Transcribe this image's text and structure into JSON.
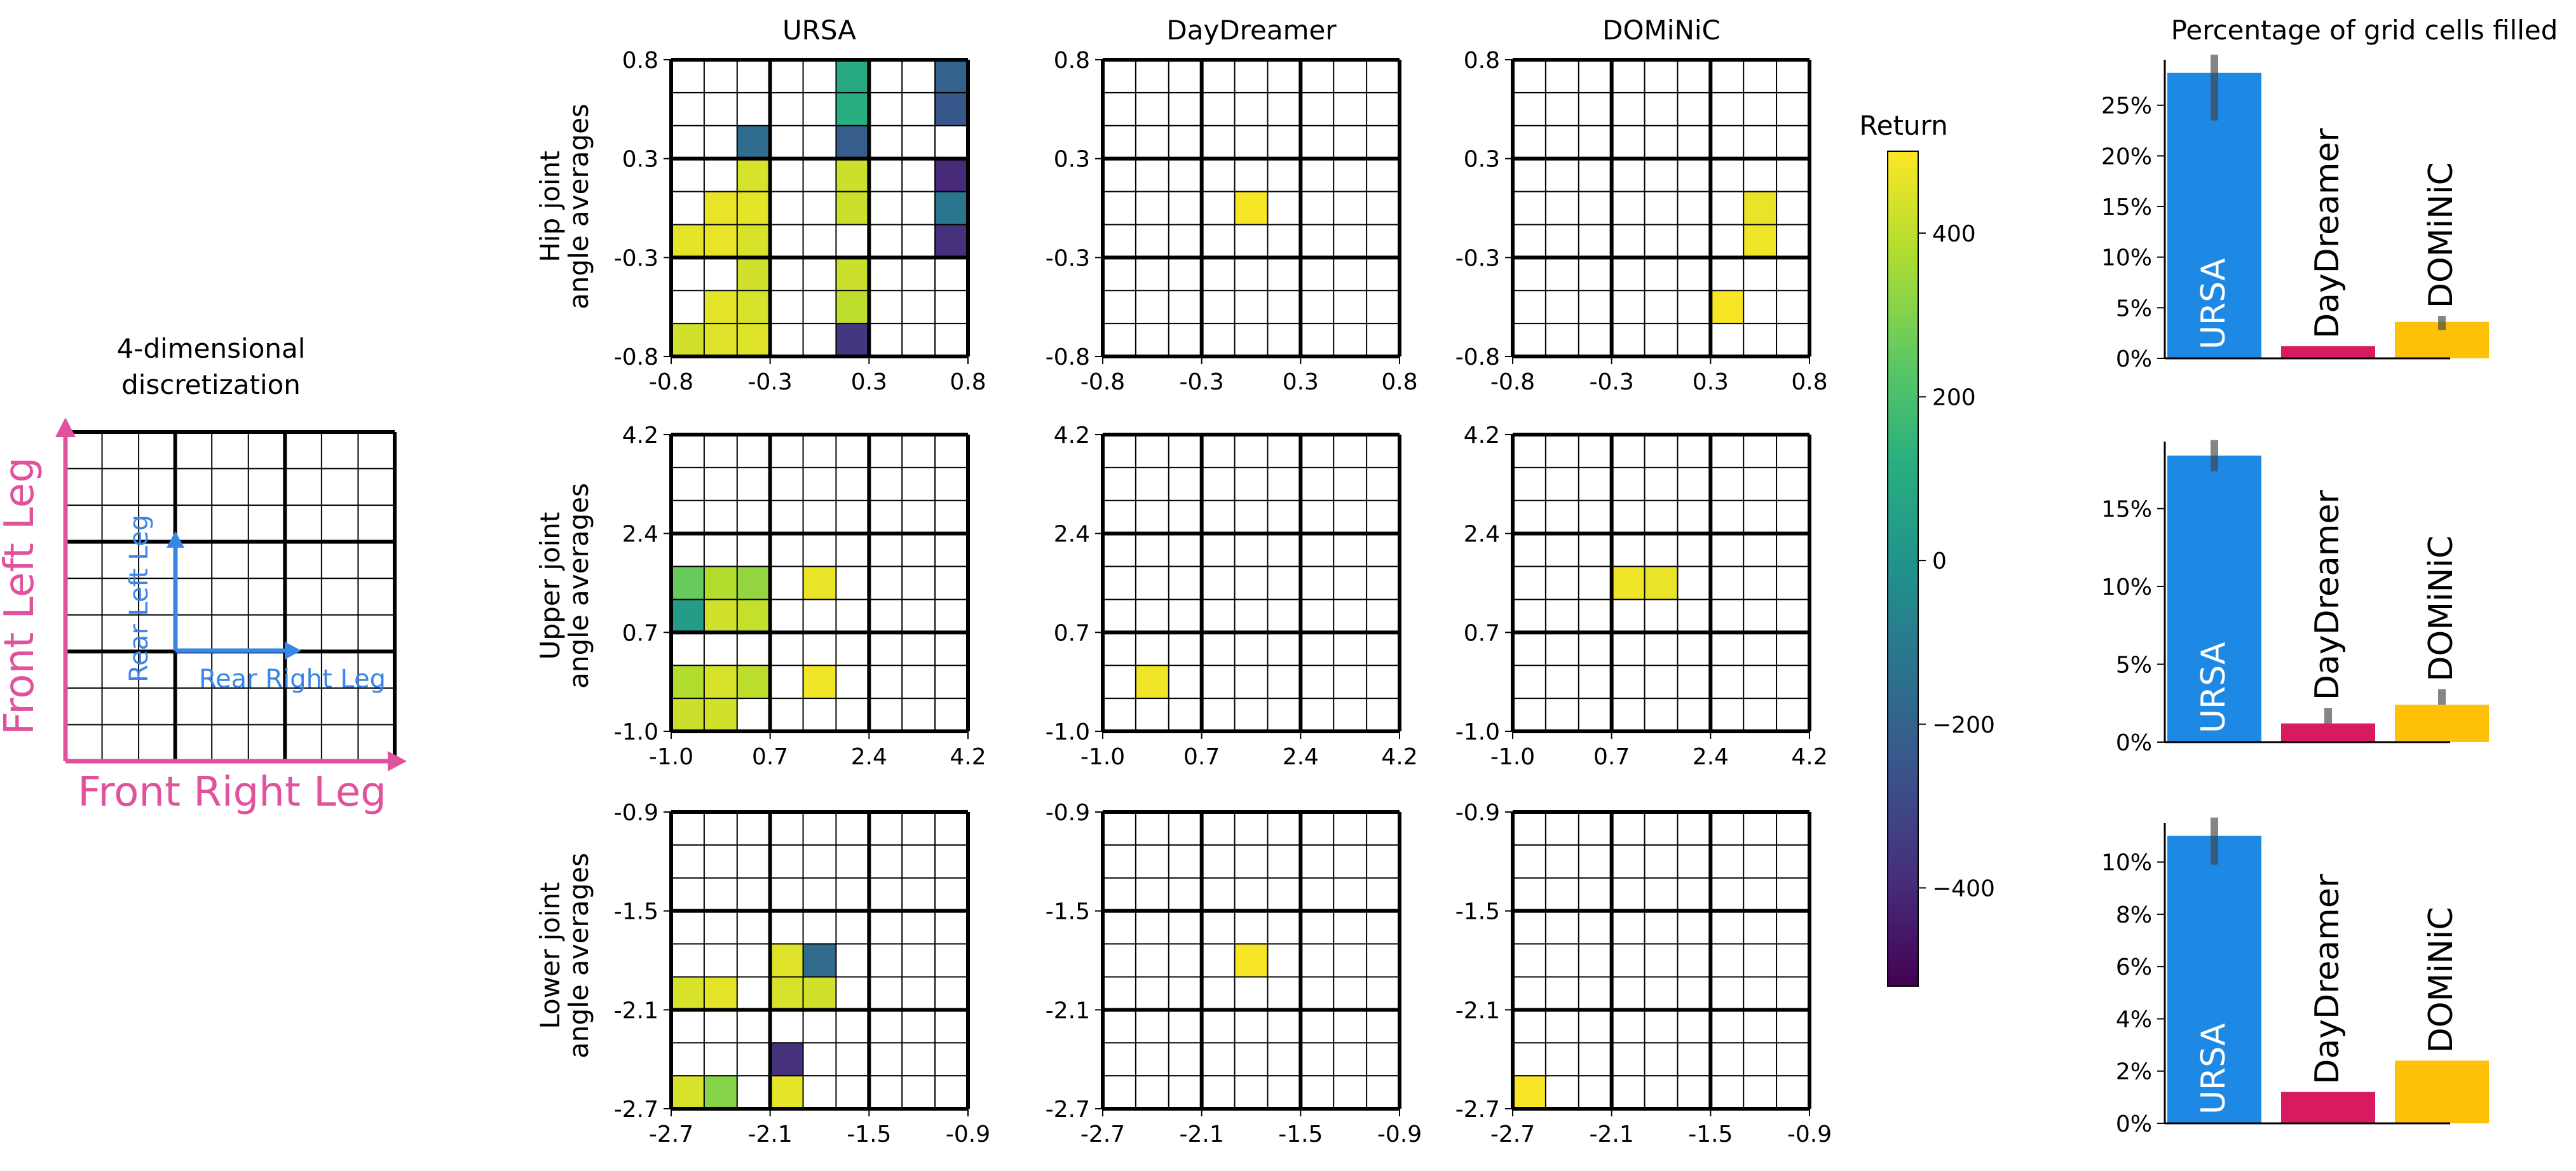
{
  "legend_diagram": {
    "title_lines": [
      "4-dimensional",
      "discretization"
    ],
    "axis_x_label": "Front Right Leg",
    "axis_y_label": "Front Left Leg",
    "inner_x_label": "Rear Right Leg",
    "inner_y_label": "Rear Left Leg",
    "outer_color": "#E0529C",
    "inner_color": "#3A86E8"
  },
  "column_titles": [
    "URSA",
    "DayDreamer",
    "DOMiNiC"
  ],
  "row_labels": [
    [
      "Hip joint",
      "angle averages"
    ],
    [
      "Upper joint",
      "angle averages"
    ],
    [
      "Lower joint",
      "angle averages"
    ]
  ],
  "heatmap_ticks": [
    [
      "-0.8",
      "-0.3",
      "0.3",
      "0.8"
    ],
    [
      "-1.0",
      "0.7",
      "2.4",
      "4.2"
    ],
    [
      "-2.7",
      "-2.1",
      "-1.5",
      "-0.9"
    ]
  ],
  "colorbar": {
    "title": "Return",
    "ticks": [
      "400",
      "200",
      "0",
      "−200",
      "−400"
    ],
    "tick_values": [
      400,
      200,
      0,
      -200,
      -400
    ],
    "range": [
      -520,
      500
    ],
    "colormap": "viridis"
  },
  "bar_panel_title": "Percentage of grid cells filled",
  "chart_data": [
    {
      "type": "heatmap",
      "title": "URSA",
      "ylabel": "Hip joint angle averages",
      "x_ticks": [
        "-0.8",
        "-0.3",
        "0.3",
        "0.8"
      ],
      "y_ticks": [
        "-0.8",
        "-0.3",
        "0.3",
        "0.8"
      ],
      "grid": 9,
      "cells": [
        {
          "col": 5,
          "row": 0,
          "value": 90
        },
        {
          "col": 8,
          "row": 0,
          "value": -200
        },
        {
          "col": 5,
          "row": 1,
          "value": 120
        },
        {
          "col": 8,
          "row": 1,
          "value": -240
        },
        {
          "col": 2,
          "row": 2,
          "value": -160
        },
        {
          "col": 5,
          "row": 2,
          "value": -220
        },
        {
          "col": 2,
          "row": 3,
          "value": 440
        },
        {
          "col": 5,
          "row": 3,
          "value": 420
        },
        {
          "col": 8,
          "row": 3,
          "value": -400
        },
        {
          "col": 1,
          "row": 4,
          "value": 470
        },
        {
          "col": 2,
          "row": 4,
          "value": 460
        },
        {
          "col": 5,
          "row": 4,
          "value": 420
        },
        {
          "col": 8,
          "row": 4,
          "value": -120
        },
        {
          "col": 0,
          "row": 5,
          "value": 460
        },
        {
          "col": 1,
          "row": 5,
          "value": 470
        },
        {
          "col": 2,
          "row": 5,
          "value": 440
        },
        {
          "col": 8,
          "row": 5,
          "value": -380
        },
        {
          "col": 2,
          "row": 6,
          "value": 430
        },
        {
          "col": 5,
          "row": 6,
          "value": 420
        },
        {
          "col": 1,
          "row": 7,
          "value": 460
        },
        {
          "col": 2,
          "row": 7,
          "value": 440
        },
        {
          "col": 5,
          "row": 7,
          "value": 400
        },
        {
          "col": 0,
          "row": 8,
          "value": 430
        },
        {
          "col": 1,
          "row": 8,
          "value": 450
        },
        {
          "col": 2,
          "row": 8,
          "value": 450
        },
        {
          "col": 5,
          "row": 8,
          "value": -360
        }
      ]
    },
    {
      "type": "heatmap",
      "title": "DayDreamer",
      "ylabel": "Hip joint angle averages",
      "x_ticks": [
        "-0.8",
        "-0.3",
        "0.3",
        "0.8"
      ],
      "y_ticks": [
        "-0.8",
        "-0.3",
        "0.3",
        "0.8"
      ],
      "grid": 9,
      "cells": [
        {
          "col": 4,
          "row": 4,
          "value": 490
        }
      ]
    },
    {
      "type": "heatmap",
      "title": "DOMiNiC",
      "ylabel": "Hip joint angle averages",
      "x_ticks": [
        "-0.8",
        "-0.3",
        "0.3",
        "0.8"
      ],
      "y_ticks": [
        "-0.8",
        "-0.3",
        "0.3",
        "0.8"
      ],
      "grid": 9,
      "cells": [
        {
          "col": 7,
          "row": 4,
          "value": 470
        },
        {
          "col": 7,
          "row": 5,
          "value": 480
        },
        {
          "col": 6,
          "row": 7,
          "value": 490
        }
      ]
    },
    {
      "type": "heatmap",
      "title": "URSA",
      "ylabel": "Upper joint angle averages",
      "x_ticks": [
        "-1.0",
        "0.7",
        "2.4",
        "4.2"
      ],
      "y_ticks": [
        "-1.0",
        "0.7",
        "2.4",
        "4.2"
      ],
      "grid": 9,
      "cells": [
        {
          "col": 0,
          "row": 4,
          "value": 260
        },
        {
          "col": 1,
          "row": 4,
          "value": 380
        },
        {
          "col": 2,
          "row": 4,
          "value": 330
        },
        {
          "col": 4,
          "row": 4,
          "value": 470
        },
        {
          "col": 0,
          "row": 5,
          "value": 40
        },
        {
          "col": 1,
          "row": 5,
          "value": 430
        },
        {
          "col": 2,
          "row": 5,
          "value": 410
        },
        {
          "col": 0,
          "row": 7,
          "value": 380
        },
        {
          "col": 1,
          "row": 7,
          "value": 440
        },
        {
          "col": 2,
          "row": 7,
          "value": 400
        },
        {
          "col": 4,
          "row": 7,
          "value": 480
        },
        {
          "col": 0,
          "row": 8,
          "value": 420
        },
        {
          "col": 1,
          "row": 8,
          "value": 430
        }
      ]
    },
    {
      "type": "heatmap",
      "title": "DayDreamer",
      "ylabel": "Upper joint angle averages",
      "x_ticks": [
        "-1.0",
        "0.7",
        "2.4",
        "4.2"
      ],
      "y_ticks": [
        "-1.0",
        "0.7",
        "2.4",
        "4.2"
      ],
      "grid": 9,
      "cells": [
        {
          "col": 1,
          "row": 7,
          "value": 480
        }
      ]
    },
    {
      "type": "heatmap",
      "title": "DOMiNiC",
      "ylabel": "Upper joint angle averages",
      "x_ticks": [
        "-1.0",
        "0.7",
        "2.4",
        "4.2"
      ],
      "y_ticks": [
        "-1.0",
        "0.7",
        "2.4",
        "4.2"
      ],
      "grid": 9,
      "cells": [
        {
          "col": 3,
          "row": 4,
          "value": 480
        },
        {
          "col": 4,
          "row": 4,
          "value": 470
        }
      ]
    },
    {
      "type": "heatmap",
      "title": "URSA",
      "ylabel": "Lower joint angle averages",
      "x_ticks": [
        "-2.7",
        "-2.1",
        "-1.5",
        "-0.9"
      ],
      "y_ticks": [
        "-2.7",
        "-2.1",
        "-1.5",
        "-0.9"
      ],
      "grid": 9,
      "cells": [
        {
          "col": 3,
          "row": 4,
          "value": 450
        },
        {
          "col": 4,
          "row": 4,
          "value": -170
        },
        {
          "col": 0,
          "row": 5,
          "value": 440
        },
        {
          "col": 1,
          "row": 5,
          "value": 460
        },
        {
          "col": 3,
          "row": 5,
          "value": 440
        },
        {
          "col": 4,
          "row": 5,
          "value": 430
        },
        {
          "col": 3,
          "row": 7,
          "value": -380
        },
        {
          "col": 0,
          "row": 8,
          "value": 440
        },
        {
          "col": 1,
          "row": 8,
          "value": 310
        },
        {
          "col": 3,
          "row": 8,
          "value": 460
        }
      ]
    },
    {
      "type": "heatmap",
      "title": "DayDreamer",
      "ylabel": "Lower joint angle averages",
      "x_ticks": [
        "-2.7",
        "-2.1",
        "-1.5",
        "-0.9"
      ],
      "y_ticks": [
        "-2.7",
        "-2.1",
        "-1.5",
        "-0.9"
      ],
      "grid": 9,
      "cells": [
        {
          "col": 4,
          "row": 4,
          "value": 490
        }
      ]
    },
    {
      "type": "heatmap",
      "title": "DOMiNiC",
      "ylabel": "Lower joint angle averages",
      "x_ticks": [
        "-2.7",
        "-2.1",
        "-1.5",
        "-0.9"
      ],
      "y_ticks": [
        "-2.7",
        "-2.1",
        "-1.5",
        "-0.9"
      ],
      "grid": 9,
      "cells": [
        {
          "col": 0,
          "row": 8,
          "value": 490
        }
      ]
    },
    {
      "type": "bar",
      "title": "Percentage of grid cells filled",
      "categories": [
        "URSA",
        "DayDreamer",
        "DOMiNiC"
      ],
      "values": [
        28.2,
        1.2,
        3.6
      ],
      "errors": [
        [
          23.5,
          30.0
        ],
        [
          1.2,
          1.2
        ],
        [
          2.8,
          4.2
        ]
      ],
      "colors": [
        "#1E88E5",
        "#D81B60",
        "#FFC107"
      ],
      "y_ticks": [
        "0%",
        "5%",
        "10%",
        "15%",
        "20%",
        "25%"
      ],
      "y_tick_values": [
        0,
        5,
        10,
        15,
        20,
        25
      ],
      "ylim": [
        0,
        29.5
      ]
    },
    {
      "type": "bar",
      "categories": [
        "URSA",
        "DayDreamer",
        "DOMiNiC"
      ],
      "values": [
        18.4,
        1.2,
        2.4
      ],
      "errors": [
        [
          17.4,
          19.4
        ],
        [
          1.2,
          2.2
        ],
        [
          2.4,
          3.4
        ]
      ],
      "colors": [
        "#1E88E5",
        "#D81B60",
        "#FFC107"
      ],
      "y_ticks": [
        "0%",
        "5%",
        "10%",
        "15%"
      ],
      "y_tick_values": [
        0,
        5,
        10,
        15
      ],
      "ylim": [
        0,
        19.3
      ]
    },
    {
      "type": "bar",
      "categories": [
        "URSA",
        "DayDreamer",
        "DOMiNiC"
      ],
      "values": [
        11.0,
        1.2,
        2.4
      ],
      "errors": [
        [
          9.9,
          11.7
        ],
        [
          1.2,
          1.2
        ],
        [
          2.4,
          2.4
        ]
      ],
      "colors": [
        "#1E88E5",
        "#D81B60",
        "#FFC107"
      ],
      "y_ticks": [
        "0%",
        "2%",
        "4%",
        "6%",
        "8%",
        "10%"
      ],
      "y_tick_values": [
        0,
        2,
        4,
        6,
        8,
        10
      ],
      "ylim": [
        0,
        11.5
      ]
    }
  ]
}
